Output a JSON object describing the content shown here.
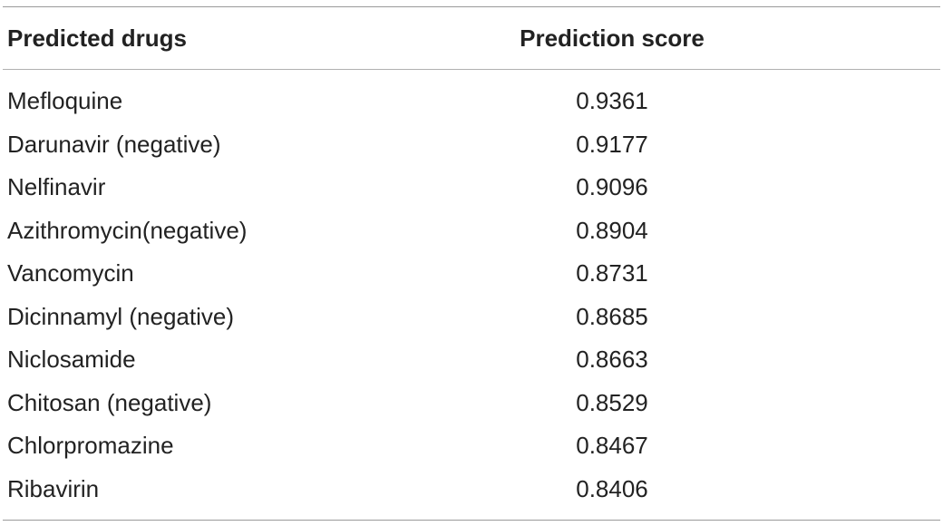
{
  "table": {
    "headers": {
      "drug": "Predicted drugs",
      "score": "Prediction score"
    },
    "rows": [
      {
        "drug": "Mefloquine",
        "score": "0.9361"
      },
      {
        "drug": "Darunavir (negative)",
        "score": "0.9177"
      },
      {
        "drug": "Nelfinavir",
        "score": "0.9096"
      },
      {
        "drug": "Azithromycin(negative)",
        "score": "0.8904"
      },
      {
        "drug": "Vancomycin",
        "score": "0.8731"
      },
      {
        "drug": "Dicinnamyl (negative)",
        "score": "0.8685"
      },
      {
        "drug": "Niclosamide",
        "score": "0.8663"
      },
      {
        "drug": "Chitosan (negative)",
        "score": "0.8529"
      },
      {
        "drug": "Chlorpromazine",
        "score": "0.8467"
      },
      {
        "drug": "Ribavirin",
        "score": "0.8406"
      }
    ]
  }
}
